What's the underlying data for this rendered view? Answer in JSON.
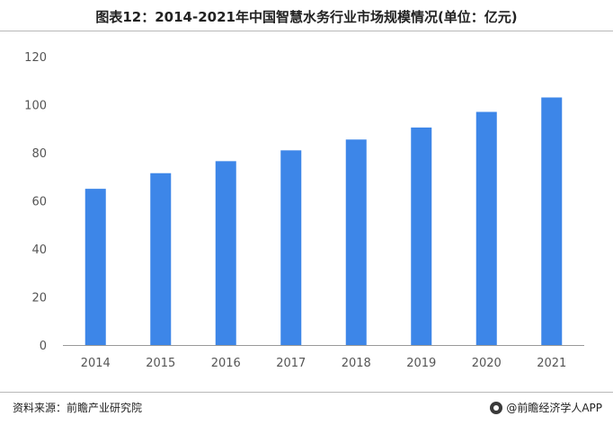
{
  "title": "图表12：2014-2021年中国智慧水务行业市场规模情况(单位：亿元)",
  "source_text": "资料来源：前瞻产业研究院",
  "brand_text": "@前瞻经济学人APP",
  "colors": {
    "bar": "#3d86e8",
    "axis": "#999999",
    "tick_text": "#555555"
  },
  "chart_data": {
    "type": "bar",
    "title": "",
    "xlabel": "",
    "ylabel": "",
    "categories": [
      "2014",
      "2015",
      "2016",
      "2017",
      "2018",
      "2019",
      "2020",
      "2021"
    ],
    "values": [
      65,
      71.5,
      76.5,
      81,
      85.5,
      90.5,
      97,
      103
    ],
    "ylim": [
      0,
      120
    ],
    "yticks": [
      0,
      20,
      40,
      60,
      80,
      100,
      120
    ],
    "grid": false,
    "legend": "none"
  }
}
